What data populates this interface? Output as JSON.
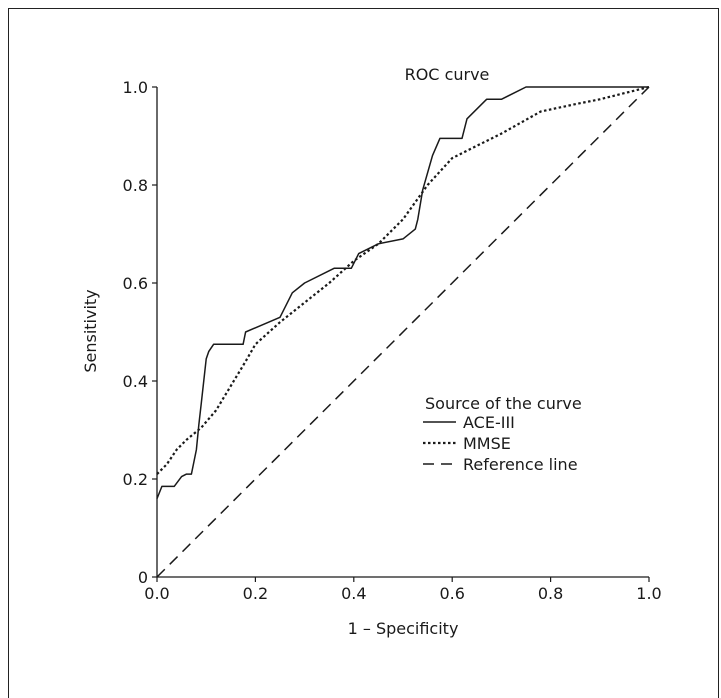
{
  "chart_data": {
    "type": "line",
    "title": "ROC curve",
    "xlabel": "1 – Specificity",
    "ylabel": "Sensitivity",
    "xlim": [
      0,
      1
    ],
    "ylim": [
      0,
      1
    ],
    "x_ticks": [
      "0.0",
      "0.2",
      "0.4",
      "0.6",
      "0.8",
      "1.0"
    ],
    "y_ticks": [
      "0",
      "0.2",
      "0.4",
      "0.6",
      "0.8",
      "1.0"
    ],
    "grid": false,
    "legend_title": "Source of the curve",
    "legend_position": "center-right",
    "series": [
      {
        "name": "ACE-III",
        "style": "solid",
        "x": [
          0,
          0.01,
          0.02,
          0.035,
          0.05,
          0.06,
          0.07,
          0.08,
          0.085,
          0.09,
          0.1,
          0.105,
          0.115,
          0.16,
          0.175,
          0.18,
          0.25,
          0.275,
          0.3,
          0.36,
          0.395,
          0.41,
          0.45,
          0.5,
          0.525,
          0.53,
          0.54,
          0.56,
          0.575,
          0.59,
          0.62,
          0.63,
          0.67,
          0.7,
          0.75,
          1.0
        ],
        "y": [
          0.16,
          0.185,
          0.185,
          0.185,
          0.205,
          0.21,
          0.21,
          0.26,
          0.31,
          0.355,
          0.445,
          0.46,
          0.475,
          0.475,
          0.475,
          0.5,
          0.53,
          0.58,
          0.6,
          0.63,
          0.63,
          0.66,
          0.68,
          0.69,
          0.71,
          0.73,
          0.79,
          0.86,
          0.895,
          0.895,
          0.895,
          0.935,
          0.975,
          0.975,
          1.0,
          1.0
        ]
      },
      {
        "name": "MMSE",
        "style": "dotted",
        "x": [
          0,
          0.02,
          0.04,
          0.06,
          0.09,
          0.12,
          0.15,
          0.18,
          0.2,
          0.25,
          0.3,
          0.35,
          0.4,
          0.45,
          0.5,
          0.55,
          0.6,
          0.65,
          0.7,
          0.78,
          0.85,
          0.9,
          1.0
        ],
        "y": [
          0.21,
          0.23,
          0.26,
          0.28,
          0.305,
          0.34,
          0.39,
          0.44,
          0.475,
          0.52,
          0.56,
          0.6,
          0.645,
          0.68,
          0.73,
          0.8,
          0.855,
          0.88,
          0.905,
          0.95,
          0.965,
          0.975,
          1.0
        ]
      },
      {
        "name": "Reference line",
        "style": "dashed",
        "x": [
          0,
          1
        ],
        "y": [
          0,
          1
        ]
      }
    ]
  }
}
